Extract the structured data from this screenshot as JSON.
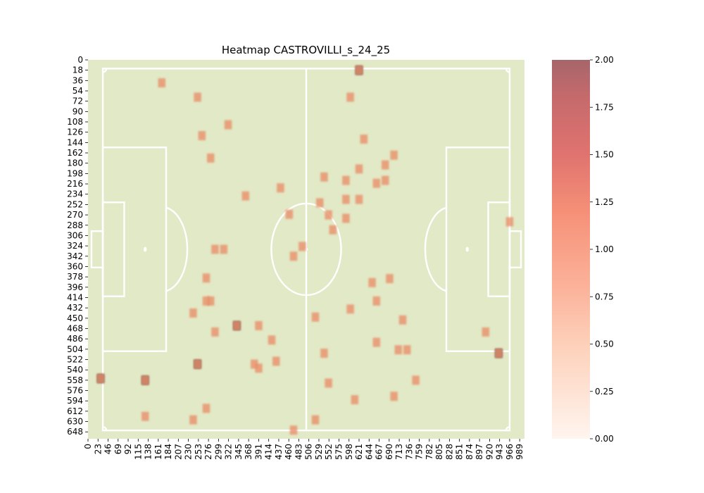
{
  "chart_data": {
    "type": "heatmap",
    "title": "Heatmap CASTROVILLI_s_24_25",
    "xlabel": "",
    "ylabel": "",
    "xlim": [
      0,
      1000
    ],
    "ylim": [
      0,
      660
    ],
    "x_ticks": [
      0,
      23,
      46,
      69,
      92,
      115,
      138,
      161,
      184,
      207,
      230,
      253,
      276,
      299,
      322,
      345,
      368,
      391,
      414,
      437,
      460,
      483,
      506,
      529,
      552,
      575,
      598,
      621,
      644,
      667,
      690,
      713,
      736,
      759,
      782,
      805,
      828,
      851,
      874,
      897,
      920,
      943,
      966,
      989
    ],
    "y_ticks": [
      0,
      18,
      36,
      54,
      72,
      90,
      108,
      126,
      144,
      162,
      180,
      198,
      216,
      234,
      252,
      270,
      288,
      306,
      324,
      342,
      360,
      378,
      396,
      414,
      432,
      450,
      468,
      486,
      504,
      522,
      540,
      558,
      576,
      594,
      612,
      630,
      648
    ],
    "colorbar": {
      "min": 0,
      "max": 2,
      "ticks": [
        "0.00",
        "0.25",
        "0.50",
        "0.75",
        "1.00",
        "1.25",
        "1.50",
        "1.75",
        "2.00"
      ]
    },
    "pitch_color": "#e2e9c6",
    "line_color": "#ffffff",
    "grid": false,
    "events": [
      {
        "x": 621,
        "y": 18,
        "v": 2
      },
      {
        "x": 621,
        "y": 18,
        "v": 1
      },
      {
        "x": 169,
        "y": 40,
        "v": 1
      },
      {
        "x": 251,
        "y": 65,
        "v": 1
      },
      {
        "x": 601,
        "y": 65,
        "v": 1
      },
      {
        "x": 321,
        "y": 113,
        "v": 1
      },
      {
        "x": 261,
        "y": 132,
        "v": 1
      },
      {
        "x": 632,
        "y": 138,
        "v": 1
      },
      {
        "x": 701,
        "y": 166,
        "v": 1
      },
      {
        "x": 281,
        "y": 171,
        "v": 1
      },
      {
        "x": 681,
        "y": 183,
        "v": 1
      },
      {
        "x": 621,
        "y": 190,
        "v": 1
      },
      {
        "x": 541,
        "y": 204,
        "v": 1
      },
      {
        "x": 591,
        "y": 210,
        "v": 1
      },
      {
        "x": 681,
        "y": 210,
        "v": 1
      },
      {
        "x": 661,
        "y": 215,
        "v": 1
      },
      {
        "x": 441,
        "y": 223,
        "v": 1
      },
      {
        "x": 361,
        "y": 237,
        "v": 1
      },
      {
        "x": 591,
        "y": 243,
        "v": 1
      },
      {
        "x": 621,
        "y": 243,
        "v": 1
      },
      {
        "x": 531,
        "y": 249,
        "v": 1
      },
      {
        "x": 461,
        "y": 269,
        "v": 1
      },
      {
        "x": 551,
        "y": 270,
        "v": 1
      },
      {
        "x": 591,
        "y": 276,
        "v": 1
      },
      {
        "x": 561,
        "y": 296,
        "v": 1
      },
      {
        "x": 966,
        "y": 282,
        "v": 1
      },
      {
        "x": 491,
        "y": 325,
        "v": 1
      },
      {
        "x": 291,
        "y": 330,
        "v": 1
      },
      {
        "x": 311,
        "y": 330,
        "v": 1
      },
      {
        "x": 471,
        "y": 342,
        "v": 1
      },
      {
        "x": 271,
        "y": 380,
        "v": 1
      },
      {
        "x": 691,
        "y": 381,
        "v": 1
      },
      {
        "x": 651,
        "y": 388,
        "v": 1
      },
      {
        "x": 271,
        "y": 420,
        "v": 1
      },
      {
        "x": 281,
        "y": 420,
        "v": 1
      },
      {
        "x": 661,
        "y": 420,
        "v": 1
      },
      {
        "x": 601,
        "y": 434,
        "v": 1
      },
      {
        "x": 241,
        "y": 441,
        "v": 1
      },
      {
        "x": 521,
        "y": 448,
        "v": 1
      },
      {
        "x": 721,
        "y": 453,
        "v": 1
      },
      {
        "x": 341,
        "y": 463,
        "v": 2
      },
      {
        "x": 341,
        "y": 463,
        "v": 1
      },
      {
        "x": 391,
        "y": 463,
        "v": 1
      },
      {
        "x": 291,
        "y": 474,
        "v": 1
      },
      {
        "x": 911,
        "y": 474,
        "v": 1
      },
      {
        "x": 421,
        "y": 488,
        "v": 1
      },
      {
        "x": 661,
        "y": 492,
        "v": 1
      },
      {
        "x": 711,
        "y": 505,
        "v": 1
      },
      {
        "x": 731,
        "y": 505,
        "v": 1
      },
      {
        "x": 541,
        "y": 511,
        "v": 1
      },
      {
        "x": 941,
        "y": 511,
        "v": 2
      },
      {
        "x": 941,
        "y": 511,
        "v": 1
      },
      {
        "x": 431,
        "y": 525,
        "v": 1
      },
      {
        "x": 251,
        "y": 530,
        "v": 2
      },
      {
        "x": 251,
        "y": 530,
        "v": 1
      },
      {
        "x": 381,
        "y": 530,
        "v": 1
      },
      {
        "x": 391,
        "y": 537,
        "v": 1
      },
      {
        "x": 29,
        "y": 555,
        "v": 2
      },
      {
        "x": 29,
        "y": 555,
        "v": 1
      },
      {
        "x": 131,
        "y": 558,
        "v": 2
      },
      {
        "x": 131,
        "y": 558,
        "v": 1
      },
      {
        "x": 751,
        "y": 558,
        "v": 1
      },
      {
        "x": 551,
        "y": 563,
        "v": 1
      },
      {
        "x": 701,
        "y": 586,
        "v": 1
      },
      {
        "x": 611,
        "y": 592,
        "v": 1
      },
      {
        "x": 271,
        "y": 607,
        "v": 1
      },
      {
        "x": 131,
        "y": 621,
        "v": 1
      },
      {
        "x": 241,
        "y": 627,
        "v": 1
      },
      {
        "x": 521,
        "y": 627,
        "v": 1
      },
      {
        "x": 471,
        "y": 645,
        "v": 1
      }
    ]
  }
}
